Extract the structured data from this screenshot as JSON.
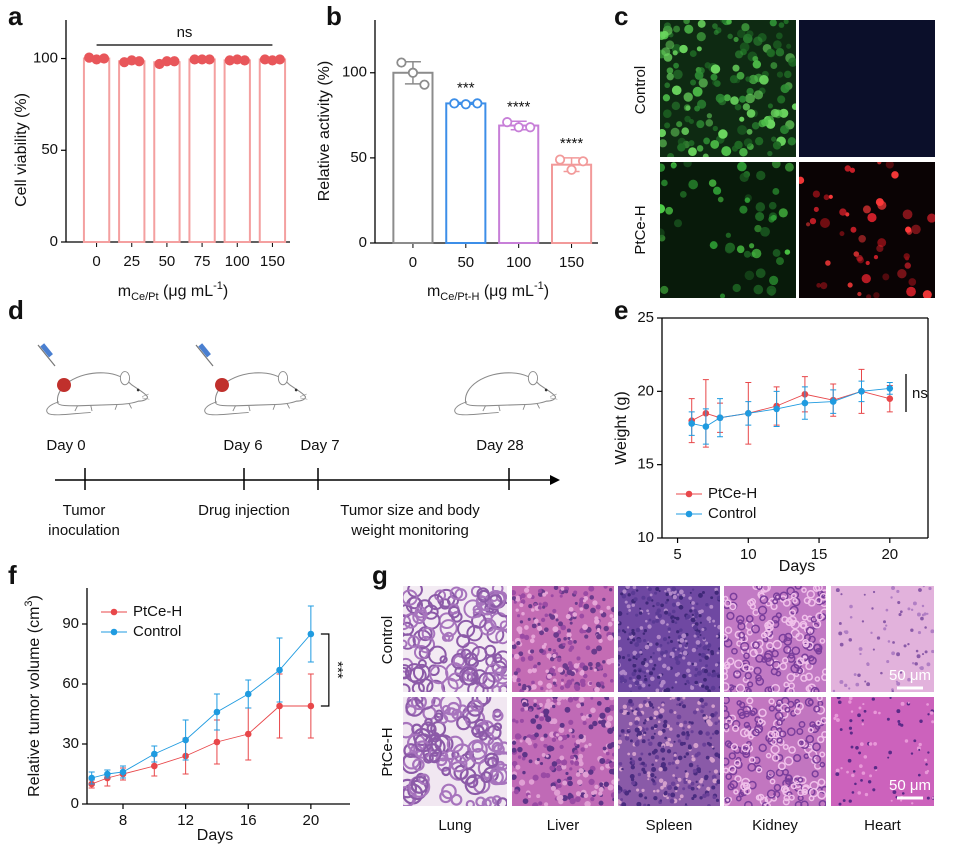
{
  "panels": [
    "a",
    "b",
    "c",
    "d",
    "e",
    "f",
    "g"
  ],
  "chart_data": [
    {
      "type": "bar",
      "categories": [
        "0",
        "25",
        "50",
        "75",
        "100",
        "150"
      ],
      "values": [
        100,
        98.5,
        98,
        99.5,
        99,
        99.5
      ],
      "errors": [
        0.5,
        0.5,
        0.8,
        0.2,
        0.3,
        0.3
      ],
      "points": [
        [
          100.5,
          99.5,
          100
        ],
        [
          98,
          99,
          98.5
        ],
        [
          97,
          98.5,
          98.5
        ],
        [
          99.5,
          99.5,
          99.5
        ],
        [
          99,
          99.5,
          99
        ],
        [
          99.5,
          99,
          99.5
        ]
      ],
      "color": "#f4a0a0",
      "point_color": "#e8565a",
      "ylim": [
        0,
        121
      ],
      "yticks": [
        0,
        50,
        100
      ],
      "y_label": [
        {
          "text": "Cell viability (%)"
        }
      ],
      "x_label": [
        {
          "text": "m"
        },
        {
          "text": "Ce/Pt",
          "sub": true
        },
        {
          "text": " (μg mL"
        },
        {
          "text": "-1",
          "sup": true
        },
        {
          "text": ")"
        }
      ],
      "annotation": "ns"
    },
    {
      "type": "bar",
      "categories": [
        "0",
        "50",
        "100",
        "150"
      ],
      "values": [
        100,
        82,
        69,
        46
      ],
      "errors": [
        6.5,
        0.5,
        2.5,
        4
      ],
      "points": [
        [
          106,
          100,
          93
        ],
        [
          82,
          81.5,
          82
        ],
        [
          71,
          68,
          68
        ],
        [
          49,
          43,
          48
        ]
      ],
      "colors": [
        "#8c8c8c",
        "#3c8ee8",
        "#c77fd8",
        "#f29a9a"
      ],
      "significance": [
        null,
        "***",
        "****",
        "****"
      ],
      "ylim": [
        0,
        131
      ],
      "yticks": [
        0,
        50,
        100
      ],
      "y_label": [
        {
          "text": "Relative activity (%)"
        }
      ],
      "x_label": [
        {
          "text": "m"
        },
        {
          "text": "Ce/Pt-H",
          "sub": true
        },
        {
          "text": " (μg mL"
        },
        {
          "text": "-1",
          "sup": true
        },
        {
          "text": ")"
        }
      ]
    },
    {
      "type": "line",
      "x": [
        6,
        7,
        8,
        10,
        12,
        14,
        16,
        18,
        20
      ],
      "series": [
        {
          "name": "PtCe-H",
          "color": "#e8474a",
          "values": [
            18.0,
            18.5,
            18.2,
            18.5,
            19.0,
            19.8,
            19.4,
            20.0,
            19.5
          ],
          "errors": [
            1.5,
            2.3,
            1.0,
            2.1,
            1.3,
            1.2,
            1.1,
            1.5,
            0.9
          ]
        },
        {
          "name": "Control",
          "color": "#1f9be0",
          "values": [
            17.8,
            17.6,
            18.2,
            18.5,
            18.8,
            19.2,
            19.3,
            20.0,
            20.2
          ],
          "errors": [
            0.8,
            1.2,
            1.3,
            0.8,
            1.2,
            1.1,
            0.8,
            0.7,
            0.4
          ]
        }
      ],
      "xlim": [
        3.9,
        22.7
      ],
      "xticks": [
        5,
        10,
        15,
        20
      ],
      "ylim": [
        10,
        25
      ],
      "yticks": [
        10,
        15,
        20,
        25
      ],
      "x_label": [
        {
          "text": "Days"
        }
      ],
      "y_label": [
        {
          "text": "Weight (g)"
        }
      ],
      "legend": "lower left",
      "box": true,
      "annotation": "ns"
    },
    {
      "type": "line",
      "x": [
        6,
        7,
        8,
        10,
        12,
        14,
        16,
        18,
        20
      ],
      "series": [
        {
          "name": "PtCe-H",
          "color": "#e8474a",
          "values": [
            10,
            13,
            15,
            19,
            24,
            31,
            35,
            49,
            49
          ],
          "errors": [
            2,
            4,
            3,
            5,
            9,
            11,
            13,
            16,
            16
          ]
        },
        {
          "name": "Control",
          "color": "#1f9be0",
          "values": [
            13,
            15,
            16,
            25,
            32,
            46,
            55,
            67,
            85
          ],
          "errors": [
            3,
            2,
            3,
            4,
            10,
            9,
            7,
            16,
            14
          ]
        }
      ],
      "xlim": [
        5.7,
        22.5
      ],
      "xticks": [
        8,
        12,
        16,
        20
      ],
      "ylim": [
        0,
        108
      ],
      "yticks": [
        0,
        30,
        60,
        90
      ],
      "x_label": [
        {
          "text": "Days"
        }
      ],
      "y_label": [
        {
          "text": "Relative tumor volume (cm"
        },
        {
          "text": "3",
          "sup": true
        },
        {
          "text": ")"
        }
      ],
      "legend": "upper left",
      "box": false,
      "annotation": "***"
    }
  ],
  "fluorescence": {
    "rows": [
      "Control",
      "PtCe-H"
    ]
  },
  "timeline": {
    "days": [
      "Day 0",
      "Day 6",
      "Day 7",
      "Day 28"
    ],
    "events": [
      [
        "Tumor",
        "inoculation"
      ],
      [
        "Drug injection"
      ],
      [
        "Tumor size and body",
        "weight monitoring"
      ]
    ]
  },
  "histology": {
    "rows": [
      "Control",
      "PtCe-H"
    ],
    "columns": [
      "Lung",
      "Liver",
      "Spleen",
      "Kidney",
      "Heart"
    ],
    "scale_bar": "50 μm"
  }
}
